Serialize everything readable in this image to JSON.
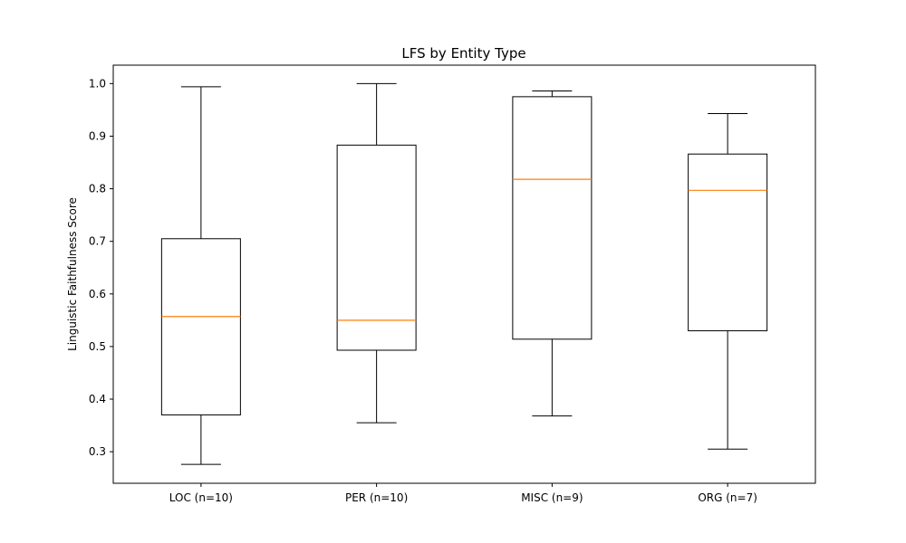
{
  "chart_data": {
    "type": "box",
    "title": "LFS by Entity Type",
    "xlabel": "",
    "ylabel": "Linguistic Faithfulness Score",
    "ylim": [
      0.24,
      1.035
    ],
    "yticks": [
      0.3,
      0.4,
      0.5,
      0.6,
      0.7,
      0.8,
      0.9,
      1.0
    ],
    "ytick_labels": [
      "0.3",
      "0.4",
      "0.5",
      "0.6",
      "0.7",
      "0.8",
      "0.9",
      "1.0"
    ],
    "categories": [
      "LOC (n=10)",
      "PER (n=10)",
      "MISC (n=9)",
      "ORG (n=7)"
    ],
    "boxes": [
      {
        "category": "LOC (n=10)",
        "whisker_low": 0.276,
        "q1": 0.37,
        "median": 0.557,
        "q3": 0.705,
        "whisker_high": 0.994
      },
      {
        "category": "PER (n=10)",
        "whisker_low": 0.355,
        "q1": 0.493,
        "median": 0.55,
        "q3": 0.883,
        "whisker_high": 1.0
      },
      {
        "category": "MISC (n=9)",
        "whisker_low": 0.368,
        "q1": 0.514,
        "median": 0.818,
        "q3": 0.975,
        "whisker_high": 0.986
      },
      {
        "category": "ORG (n=7)",
        "whisker_low": 0.305,
        "q1": 0.53,
        "median": 0.797,
        "q3": 0.866,
        "whisker_high": 0.943
      }
    ],
    "colors": {
      "box": "#000000",
      "median": "#ff7f0e",
      "axes": "#000000"
    },
    "grid": false,
    "legend": "none"
  }
}
